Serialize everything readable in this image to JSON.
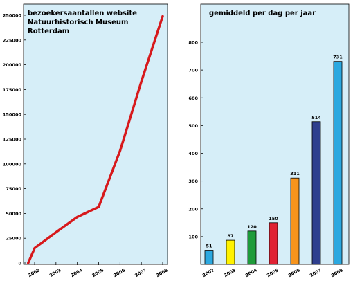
{
  "chart_data": [
    {
      "type": "line",
      "title_lines": [
        "bezoekersaantallen website",
        "Natuurhistorisch Museum",
        "Rotterdam"
      ],
      "xlabel": "",
      "ylabel": "",
      "categories": [
        "2002",
        "2003",
        "2004",
        "2005",
        "2006",
        "2007",
        "2008"
      ],
      "x_tick_labels": [
        "2002",
        "2003",
        "2004",
        "2005",
        "2006",
        "2007",
        "2008"
      ],
      "series": [
        {
          "values": [
            0,
            15000,
            31000,
            46500,
            56500,
            113000,
            183000,
            249000
          ],
          "x": [
            2001.7,
            2002,
            2003,
            2004,
            2005,
            2006,
            2007,
            2008
          ],
          "color": "#d7191c"
        }
      ],
      "ylim": [
        0,
        250000
      ],
      "y_ticks": [
        "0",
        "25000",
        "50000",
        "75000",
        "100000",
        "125000",
        "150000",
        "175000",
        "200000",
        "225000",
        "250000"
      ],
      "grid": false,
      "legend": "none",
      "background": "#d6eef8"
    },
    {
      "type": "bar",
      "title": "gemiddeld per dag per jaar",
      "xlabel": "",
      "ylabel": "",
      "categories": [
        "2002",
        "2003",
        "2004",
        "2005",
        "2006",
        "2007",
        "2008"
      ],
      "values": [
        51,
        87,
        120,
        150,
        311,
        514,
        731
      ],
      "data_labels": [
        "51",
        "87",
        "120",
        "150",
        "311",
        "514",
        "731"
      ],
      "colors": [
        "#2ba8e0",
        "#fff200",
        "#1e9b3a",
        "#e02233",
        "#f7941d",
        "#2e3f8e",
        "#2ba8e0"
      ],
      "ylim": [
        0,
        850
      ],
      "y_ticks": [
        "100",
        "200",
        "300",
        "400",
        "500",
        "600",
        "700",
        "800"
      ],
      "grid": false,
      "legend": "none",
      "background": "#d6eef8"
    }
  ]
}
